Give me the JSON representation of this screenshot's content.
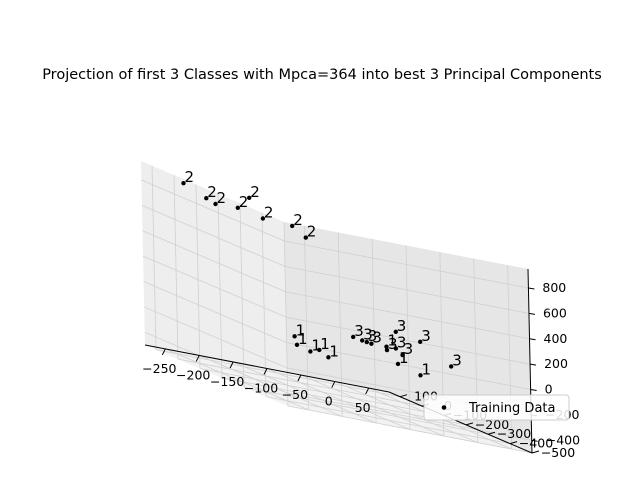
{
  "chart_data": {
    "type": "scatter",
    "projection": "3d",
    "title": "Projection of first 3 Classes with Mpca=364 into best 3 Principal Components",
    "xlabel": "",
    "ylabel": "",
    "zlabel": "",
    "x_ticks": [
      "−250",
      "−200",
      "−150",
      "−100",
      "−50",
      "0",
      "50"
    ],
    "y_ticks": [
      "100",
      "0",
      "−100",
      "−200",
      "−300",
      "−400",
      "−500"
    ],
    "z_ticks": [
      "800",
      "600",
      "400",
      "200",
      "0",
      "−200",
      "−400"
    ],
    "xlim": [
      -280,
      80
    ],
    "ylim": [
      -500,
      150
    ],
    "zlim": [
      -500,
      950
    ],
    "grid": true,
    "legend": {
      "entries": [
        "Training Data"
      ],
      "position": "lower-right"
    },
    "marker_color": "#000000",
    "series": [
      {
        "name": "Training Data",
        "points": [
          {
            "label": "2",
            "x": -250,
            "y": 50,
            "z": 880
          },
          {
            "label": "2",
            "x": -220,
            "y": 40,
            "z": 800
          },
          {
            "label": "2",
            "x": -200,
            "y": 60,
            "z": 760
          },
          {
            "label": "2",
            "x": -150,
            "y": 60,
            "z": 860
          },
          {
            "label": "2",
            "x": -180,
            "y": 20,
            "z": 780
          },
          {
            "label": "2",
            "x": -140,
            "y": 30,
            "z": 730
          },
          {
            "label": "2",
            "x": -100,
            "y": 20,
            "z": 720
          },
          {
            "label": "2",
            "x": -90,
            "y": -10,
            "z": 660
          },
          {
            "label": "1",
            "x": -100,
            "y": 20,
            "z": -150
          },
          {
            "label": "1",
            "x": -100,
            "y": 10,
            "z": -210
          },
          {
            "label": "1",
            "x": -80,
            "y": -30,
            "z": -200
          },
          {
            "label": "1",
            "x": -90,
            "y": -20,
            "z": -230
          },
          {
            "label": "1",
            "x": -70,
            "y": -40,
            "z": -240
          },
          {
            "label": "1",
            "x": 10,
            "y": -60,
            "z": -60
          },
          {
            "label": "1",
            "x": 20,
            "y": -80,
            "z": -170
          },
          {
            "label": "1",
            "x": 40,
            "y": -120,
            "z": -210
          },
          {
            "label": "3",
            "x": -10,
            "y": 30,
            "z": -70
          },
          {
            "label": "3",
            "x": 0,
            "y": 20,
            "z": -80
          },
          {
            "label": "3",
            "x": 20,
            "y": 40,
            "z": -100
          },
          {
            "label": "3",
            "x": 10,
            "y": 30,
            "z": -90
          },
          {
            "label": "3",
            "x": 30,
            "y": 0,
            "z": -110
          },
          {
            "label": "3",
            "x": 50,
            "y": 20,
            "z": 40
          },
          {
            "label": "3",
            "x": 40,
            "y": -10,
            "z": -80
          },
          {
            "label": "3",
            "x": 40,
            "y": -40,
            "z": -110
          },
          {
            "label": "3",
            "x": 60,
            "y": -60,
            "z": 30
          },
          {
            "label": "3",
            "x": 60,
            "y": -200,
            "z": -60
          }
        ]
      }
    ]
  }
}
